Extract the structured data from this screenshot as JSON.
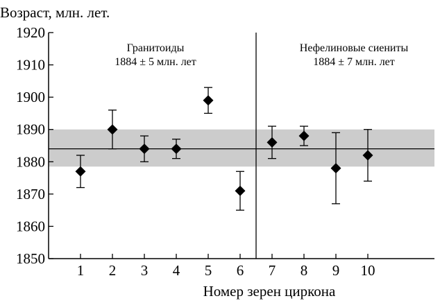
{
  "chart_data": {
    "type": "scatter",
    "title": "",
    "ylabel": "Возраст, млн. лет.",
    "xlabel": "Номер зерен циркона",
    "ylim": [
      1850,
      1920
    ],
    "y_ticks": [
      1850,
      1860,
      1870,
      1880,
      1890,
      1900,
      1910,
      1920
    ],
    "x_positions": [
      1,
      2,
      3,
      4,
      5,
      6,
      7,
      8,
      9,
      10
    ],
    "x_tick_labels": [
      "1",
      "2",
      "3",
      "4",
      "5",
      "6",
      "7",
      "8",
      "9",
      "10"
    ],
    "marker": "diamond",
    "error_bars": true,
    "reference_line": {
      "value": 1884,
      "band": [
        1878.5,
        1890
      ]
    },
    "band_color": "#cccccc",
    "groups": [
      {
        "name": "Гранитоиды",
        "annotation": "1884 ± 5 млн. лет",
        "points": [
          {
            "x": 1,
            "y": 1877,
            "ymin": 1872,
            "ymax": 1882
          },
          {
            "x": 2,
            "y": 1890,
            "ymin": 1884,
            "ymax": 1896
          },
          {
            "x": 3,
            "y": 1884,
            "ymin": 1880,
            "ymax": 1888
          },
          {
            "x": 4,
            "y": 1884,
            "ymin": 1881,
            "ymax": 1887
          },
          {
            "x": 5,
            "y": 1899,
            "ymin": 1895,
            "ymax": 1903
          },
          {
            "x": 6,
            "y": 1871,
            "ymin": 1865,
            "ymax": 1877
          }
        ]
      },
      {
        "name": "Нефелиновые сиениты",
        "annotation": "1884 ± 7 млн. лет",
        "points": [
          {
            "x": 7,
            "y": 1886,
            "ymin": 1881,
            "ymax": 1891
          },
          {
            "x": 8,
            "y": 1888,
            "ymin": 1885,
            "ymax": 1891
          },
          {
            "x": 9,
            "y": 1878,
            "ymin": 1867,
            "ymax": 1889
          },
          {
            "x": 10,
            "y": 1882,
            "ymin": 1874,
            "ymax": 1890
          }
        ]
      }
    ]
  }
}
